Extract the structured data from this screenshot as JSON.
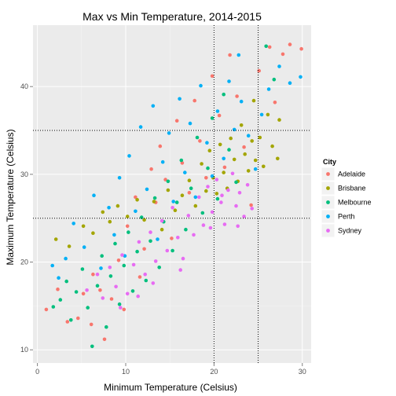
{
  "colors": {
    "panel_background": "#ebebeb",
    "grid_major": "#ffffff",
    "grid_minor": "#f5f5f5",
    "legend_key_background": "#f2f2f2"
  },
  "chart_data": {
    "type": "scatter",
    "title": "Max vs Min Temperature, 2014-2015",
    "xlabel": "Minimum Temperature (Celsius)",
    "ylabel": "Maximum Temperature (Celsius)",
    "xlim": [
      -0.5,
      31
    ],
    "ylim": [
      8.5,
      47
    ],
    "x_ticks": [
      0,
      10,
      20,
      30
    ],
    "y_ticks": [
      10,
      20,
      30,
      40
    ],
    "x_tick_labels": [
      "0",
      "10",
      "20",
      "30"
    ],
    "y_tick_labels": [
      "10",
      "20",
      "30",
      "40"
    ],
    "grid": true,
    "reference_lines": {
      "vertical_x": [
        20,
        25
      ],
      "horizontal_y": [
        25,
        35
      ],
      "style": "dotted"
    },
    "legend": {
      "title": "City",
      "position": "right"
    },
    "series": [
      {
        "name": "Adelaide",
        "color": "#f8766d",
        "points": [
          [
            1.0,
            14.6
          ],
          [
            2.3,
            16.9
          ],
          [
            3.4,
            13.2
          ],
          [
            4.6,
            13.6
          ],
          [
            5.2,
            16.4
          ],
          [
            6.1,
            12.9
          ],
          [
            6.3,
            18.6
          ],
          [
            7.1,
            16.8
          ],
          [
            7.6,
            11.2
          ],
          [
            8.4,
            15.8
          ],
          [
            9.2,
            20.2
          ],
          [
            9.8,
            14.6
          ],
          [
            10.2,
            24.1
          ],
          [
            11.1,
            27.4
          ],
          [
            11.6,
            18.3
          ],
          [
            12.1,
            21.5
          ],
          [
            12.9,
            30.6
          ],
          [
            13.4,
            26.8
          ],
          [
            13.9,
            33.2
          ],
          [
            14.5,
            29.4
          ],
          [
            15.2,
            22.7
          ],
          [
            15.8,
            36.1
          ],
          [
            16.4,
            31.3
          ],
          [
            17.2,
            27.9
          ],
          [
            17.8,
            38.4
          ],
          [
            18.4,
            33.8
          ],
          [
            19.1,
            29.6
          ],
          [
            19.8,
            41.2
          ],
          [
            20.6,
            36.7
          ],
          [
            21.2,
            30.8
          ],
          [
            21.8,
            43.6
          ],
          [
            22.6,
            38.9
          ],
          [
            23.4,
            33.1
          ],
          [
            24.2,
            26.5
          ],
          [
            25.1,
            41.8
          ],
          [
            26.3,
            44.5
          ],
          [
            26.9,
            38.2
          ],
          [
            27.8,
            43.7
          ],
          [
            28.6,
            44.8
          ],
          [
            29.9,
            44.3
          ]
        ]
      },
      {
        "name": "Brisbane",
        "color": "#a3a500",
        "points": [
          [
            2.1,
            22.6
          ],
          [
            3.6,
            21.8
          ],
          [
            5.2,
            24.1
          ],
          [
            6.3,
            23.3
          ],
          [
            7.4,
            25.7
          ],
          [
            8.2,
            24.6
          ],
          [
            9.1,
            26.4
          ],
          [
            10.2,
            25.2
          ],
          [
            11.3,
            27.1
          ],
          [
            12.1,
            24.8
          ],
          [
            13.2,
            26.9
          ],
          [
            14.1,
            23.7
          ],
          [
            14.8,
            28.2
          ],
          [
            15.6,
            25.9
          ],
          [
            16.4,
            27.6
          ],
          [
            17.2,
            29.3
          ],
          [
            17.9,
            26.4
          ],
          [
            18.6,
            31.2
          ],
          [
            19.1,
            28.1
          ],
          [
            19.5,
            32.7
          ],
          [
            19.9,
            29.6
          ],
          [
            20.3,
            27.8
          ],
          [
            20.7,
            33.4
          ],
          [
            21.1,
            30.2
          ],
          [
            21.5,
            28.4
          ],
          [
            21.9,
            34.1
          ],
          [
            22.3,
            31.7
          ],
          [
            22.7,
            29.2
          ],
          [
            23.1,
            35.6
          ],
          [
            23.5,
            32.3
          ],
          [
            23.9,
            30.4
          ],
          [
            24.3,
            33.8
          ],
          [
            24.7,
            31.6
          ],
          [
            25.2,
            34.2
          ],
          [
            25.6,
            30.9
          ],
          [
            26.1,
            36.8
          ],
          [
            26.6,
            33.2
          ],
          [
            27.2,
            31.8
          ],
          [
            27.4,
            36.2
          ],
          [
            24.5,
            38.4
          ]
        ]
      },
      {
        "name": "Melbourne",
        "color": "#00bf7d",
        "points": [
          [
            1.8,
            14.9
          ],
          [
            2.6,
            15.7
          ],
          [
            3.3,
            17.8
          ],
          [
            3.8,
            13.4
          ],
          [
            4.4,
            16.6
          ],
          [
            5.1,
            19.2
          ],
          [
            5.7,
            14.8
          ],
          [
            6.2,
            10.4
          ],
          [
            6.8,
            17.3
          ],
          [
            7.3,
            20.7
          ],
          [
            7.8,
            12.6
          ],
          [
            8.3,
            18.4
          ],
          [
            8.8,
            22.1
          ],
          [
            9.3,
            15.2
          ],
          [
            9.8,
            19.6
          ],
          [
            10.3,
            23.4
          ],
          [
            10.8,
            16.7
          ],
          [
            11.3,
            21.2
          ],
          [
            11.8,
            25.1
          ],
          [
            12.3,
            17.9
          ],
          [
            12.8,
            22.4
          ],
          [
            13.3,
            27.3
          ],
          [
            13.8,
            19.4
          ],
          [
            14.3,
            24.6
          ],
          [
            14.8,
            29.2
          ],
          [
            15.3,
            21.3
          ],
          [
            15.8,
            26.8
          ],
          [
            16.3,
            31.6
          ],
          [
            16.8,
            23.7
          ],
          [
            17.4,
            28.4
          ],
          [
            18.1,
            34.2
          ],
          [
            18.7,
            25.6
          ],
          [
            19.3,
            30.7
          ],
          [
            19.8,
            36.4
          ],
          [
            20.4,
            27.2
          ],
          [
            21.1,
            39.1
          ],
          [
            21.7,
            32.8
          ],
          [
            22.5,
            29.1
          ],
          [
            26.8,
            40.8
          ],
          [
            25.9,
            44.6
          ]
        ]
      },
      {
        "name": "Perth",
        "color": "#00b0f6",
        "points": [
          [
            1.7,
            19.6
          ],
          [
            2.4,
            18.2
          ],
          [
            3.2,
            20.4
          ],
          [
            4.1,
            24.4
          ],
          [
            5.3,
            21.7
          ],
          [
            6.4,
            27.6
          ],
          [
            7.2,
            19.3
          ],
          [
            8.1,
            26.2
          ],
          [
            8.7,
            23.1
          ],
          [
            9.3,
            29.6
          ],
          [
            9.9,
            20.7
          ],
          [
            10.4,
            32.1
          ],
          [
            11.1,
            25.8
          ],
          [
            11.7,
            35.4
          ],
          [
            12.4,
            28.3
          ],
          [
            13.1,
            37.8
          ],
          [
            13.6,
            22.6
          ],
          [
            14.2,
            31.4
          ],
          [
            14.9,
            34.7
          ],
          [
            15.4,
            26.9
          ],
          [
            16.1,
            38.6
          ],
          [
            16.7,
            30.2
          ],
          [
            17.3,
            35.8
          ],
          [
            17.9,
            27.4
          ],
          [
            18.5,
            40.1
          ],
          [
            19.2,
            33.6
          ],
          [
            19.8,
            29.8
          ],
          [
            20.4,
            37.2
          ],
          [
            21.1,
            31.8
          ],
          [
            21.7,
            40.6
          ],
          [
            22.3,
            35.1
          ],
          [
            23.1,
            38.3
          ],
          [
            23.9,
            34.4
          ],
          [
            24.7,
            30.6
          ],
          [
            25.4,
            36.8
          ],
          [
            26.2,
            39.7
          ],
          [
            27.4,
            42.3
          ],
          [
            28.6,
            40.4
          ],
          [
            29.8,
            41.1
          ],
          [
            22.8,
            43.6
          ]
        ]
      },
      {
        "name": "Sydney",
        "color": "#e76bf3",
        "points": [
          [
            5.6,
            16.8
          ],
          [
            6.8,
            18.6
          ],
          [
            7.4,
            15.9
          ],
          [
            8.2,
            19.4
          ],
          [
            8.9,
            17.2
          ],
          [
            9.6,
            20.8
          ],
          [
            10.2,
            16.4
          ],
          [
            10.9,
            19.7
          ],
          [
            11.5,
            22.3
          ],
          [
            12.2,
            18.6
          ],
          [
            12.8,
            23.4
          ],
          [
            13.4,
            20.1
          ],
          [
            14.1,
            24.7
          ],
          [
            14.7,
            21.3
          ],
          [
            15.3,
            26.2
          ],
          [
            15.9,
            22.8
          ],
          [
            16.5,
            20.4
          ],
          [
            17.1,
            25.3
          ],
          [
            17.7,
            23.1
          ],
          [
            18.3,
            27.4
          ],
          [
            18.8,
            24.2
          ],
          [
            19.3,
            28.6
          ],
          [
            19.8,
            25.7
          ],
          [
            20.3,
            29.4
          ],
          [
            20.8,
            26.8
          ],
          [
            21.2,
            24.3
          ],
          [
            21.6,
            28.2
          ],
          [
            22.1,
            30.1
          ],
          [
            22.5,
            26.4
          ],
          [
            22.9,
            27.9
          ],
          [
            23.4,
            25.2
          ],
          [
            23.8,
            28.8
          ],
          [
            24.3,
            26.1
          ],
          [
            16.2,
            19.1
          ],
          [
            13.1,
            17.6
          ],
          [
            11.4,
            16.1
          ],
          [
            20.9,
            27.6
          ],
          [
            19.6,
            23.9
          ],
          [
            9.4,
            14.8
          ],
          [
            22.7,
            24.1
          ]
        ]
      }
    ]
  }
}
